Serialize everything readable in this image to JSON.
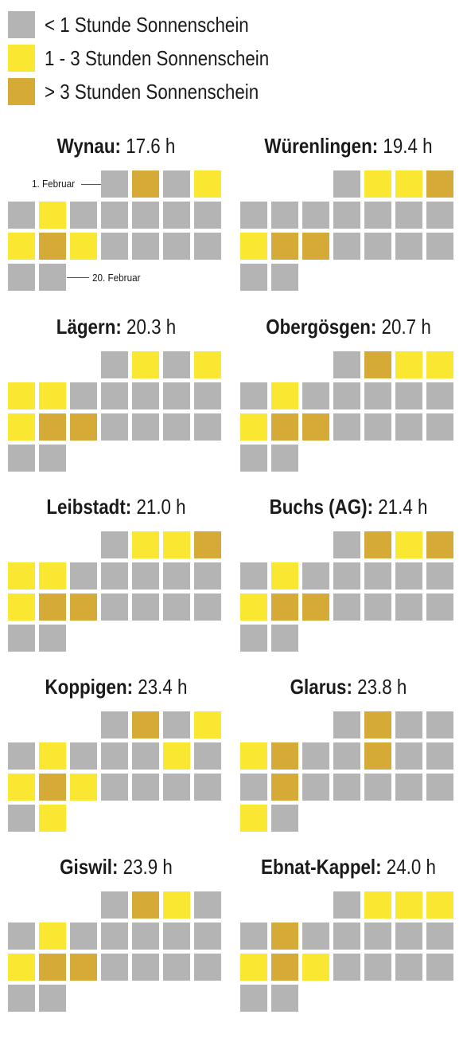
{
  "legend": {
    "items": [
      {
        "label": "< 1 Stunde Sonnenschein",
        "color": "#b4b4b4"
      },
      {
        "label": "1 - 3 Stunden Sonnenschein",
        "color": "#fae732"
      },
      {
        "label": "> 3 Stunden Sonnenschein",
        "color": "#d6aa37"
      }
    ]
  },
  "annotations": {
    "start": "1. Februar",
    "end": "20. Februar"
  },
  "chart_data": {
    "type": "heatmap",
    "description_unit": "h",
    "categories": [
      "< 1 Stunde Sonnenschein",
      "1 - 3 Stunden Sonnenschein",
      "> 3 Stunden Sonnenschein"
    ],
    "days_start": "1. Februar",
    "days_end": "20. Februar",
    "stations": [
      {
        "name": "Wynau",
        "value": "17.6 h",
        "days": [
          0,
          2,
          0,
          1,
          0,
          1,
          0,
          0,
          0,
          0,
          0,
          1,
          2,
          1,
          0,
          0,
          0,
          0,
          0,
          0
        ]
      },
      {
        "name": "Würenlingen",
        "value": "19.4 h",
        "days": [
          0,
          1,
          1,
          2,
          0,
          0,
          0,
          0,
          0,
          0,
          0,
          1,
          2,
          2,
          0,
          0,
          0,
          0,
          0,
          0
        ]
      },
      {
        "name": "Lägern",
        "value": "20.3 h",
        "days": [
          0,
          1,
          0,
          1,
          1,
          1,
          0,
          0,
          0,
          0,
          0,
          1,
          2,
          2,
          0,
          0,
          0,
          0,
          0,
          0
        ]
      },
      {
        "name": "Obergösgen",
        "value": "20.7 h",
        "days": [
          0,
          2,
          1,
          1,
          0,
          1,
          0,
          0,
          0,
          0,
          0,
          1,
          2,
          2,
          0,
          0,
          0,
          0,
          0,
          0
        ]
      },
      {
        "name": "Leibstadt",
        "value": "21.0 h",
        "days": [
          0,
          1,
          1,
          2,
          1,
          1,
          0,
          0,
          0,
          0,
          0,
          1,
          2,
          2,
          0,
          0,
          0,
          0,
          0,
          0
        ]
      },
      {
        "name": "Buchs (AG)",
        "value": "21.4 h",
        "days": [
          0,
          2,
          1,
          2,
          0,
          1,
          0,
          0,
          0,
          0,
          0,
          1,
          2,
          2,
          0,
          0,
          0,
          0,
          0,
          0
        ]
      },
      {
        "name": "Koppigen",
        "value": "23.4 h",
        "days": [
          0,
          2,
          0,
          1,
          0,
          1,
          0,
          0,
          0,
          1,
          0,
          1,
          2,
          1,
          0,
          0,
          0,
          0,
          0,
          1
        ]
      },
      {
        "name": "Glarus",
        "value": "23.8 h",
        "days": [
          0,
          2,
          0,
          0,
          1,
          2,
          0,
          0,
          2,
          0,
          0,
          0,
          2,
          0,
          0,
          0,
          0,
          0,
          1,
          0
        ]
      },
      {
        "name": "Giswil",
        "value": "23.9 h",
        "days": [
          0,
          2,
          1,
          0,
          0,
          1,
          0,
          0,
          0,
          0,
          0,
          1,
          2,
          2,
          0,
          0,
          0,
          0,
          0,
          0
        ]
      },
      {
        "name": "Ebnat-Kappel",
        "value": "24.0 h",
        "days": [
          0,
          1,
          1,
          1,
          0,
          2,
          0,
          0,
          0,
          0,
          0,
          1,
          2,
          1,
          0,
          0,
          0,
          0,
          0,
          0
        ]
      }
    ]
  }
}
